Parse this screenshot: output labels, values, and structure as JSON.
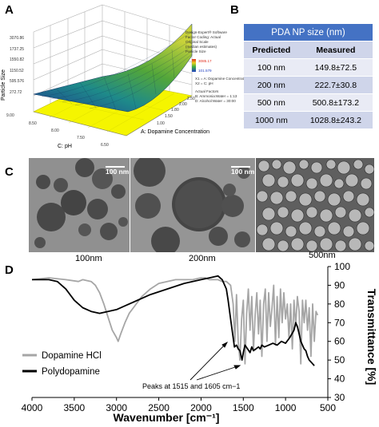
{
  "panels": {
    "a": "A",
    "b": "B",
    "c": "C",
    "d": "D"
  },
  "panel_a": {
    "z_axis_label": "Particle Size",
    "z_ticks": [
      "3070.86",
      "1737.25",
      "1550.82",
      "1150.52",
      "595.576",
      "272.72"
    ],
    "x_axis_label": "C: pH",
    "x_ticks": [
      "9.00",
      "8.50",
      "8.00",
      "7.50",
      "6.50"
    ],
    "y_axis_label": "A: Dopamine Concentration",
    "y_ticks": [
      "1.00",
      "1.50",
      "1.80",
      "2.00",
      "2.50"
    ],
    "legend_lines": [
      "Design-Expert® Software",
      "Factor Coding: Actual",
      "Original Scale",
      "(median estimates)",
      "Particle Size"
    ],
    "legend_high": "3085.17",
    "legend_low": "101.579",
    "factor_lines": [
      "X1 = A: Dopamine Concentration",
      "X2 = C: pH"
    ],
    "actual_factor_lines": [
      "Actual Factors",
      "B: Ammonia:Water = 1:13",
      "D: Alcohol:Water = 30:00"
    ]
  },
  "table": {
    "title": "PDA NP size (nm)",
    "headers": [
      "Predicted",
      "Measured"
    ],
    "rows": [
      {
        "predicted": "100 nm",
        "measured": "149.8±72.5"
      },
      {
        "predicted": "200 nm",
        "measured": "222.7±30.8"
      },
      {
        "predicted": "500 nm",
        "measured": "500.8±173.2"
      },
      {
        "predicted": "1000 nm",
        "measured": "1028.8±243.2"
      }
    ]
  },
  "panel_c": {
    "scale1": "100 nm",
    "scale2": "100 nm",
    "captions": [
      "100nm",
      "200nm",
      "500nm"
    ]
  },
  "chart_data": {
    "type": "line",
    "xlabel": "Wavenumber [cm⁻¹]",
    "ylabel": "Transmittance [%]",
    "xlim": [
      4000,
      500
    ],
    "ylim": [
      30,
      100
    ],
    "x_ticks": [
      4000,
      3500,
      3000,
      2500,
      2000,
      1500,
      1000,
      500
    ],
    "y_ticks": [
      30,
      40,
      50,
      60,
      70,
      80,
      90,
      100
    ],
    "annotation": "Peaks at 1515 and 1605 cm−1",
    "series": [
      {
        "name": "Dopamine HCl",
        "color": "#a6a6a6",
        "x": [
          4000,
          3800,
          3600,
          3450,
          3400,
          3300,
          3250,
          3200,
          3150,
          3100,
          3050,
          3000,
          2980,
          2950,
          2900,
          2850,
          2800,
          2700,
          2600,
          2500,
          2400,
          2300,
          2200,
          2100,
          2000,
          1950,
          1900,
          1850,
          1800,
          1750,
          1700,
          1650,
          1620,
          1600,
          1580,
          1560,
          1540,
          1520,
          1500,
          1480,
          1460,
          1440,
          1420,
          1400,
          1380,
          1360,
          1340,
          1320,
          1300,
          1280,
          1260,
          1240,
          1220,
          1200,
          1180,
          1160,
          1140,
          1120,
          1100,
          1080,
          1060,
          1040,
          1020,
          1000,
          980,
          960,
          940,
          920,
          900,
          880,
          860,
          840,
          820,
          800,
          780,
          760,
          740,
          720,
          700,
          680,
          660,
          640,
          620
        ],
        "y": [
          93,
          94,
          93,
          92,
          93,
          92,
          90,
          86,
          80,
          73,
          66,
          62,
          60,
          64,
          70,
          75,
          78,
          84,
          88,
          91,
          92,
          93,
          93,
          93,
          94,
          94,
          93,
          93,
          93,
          92,
          92,
          90,
          80,
          60,
          85,
          60,
          50,
          72,
          82,
          48,
          75,
          88,
          66,
          84,
          55,
          74,
          86,
          64,
          82,
          52,
          80,
          88,
          60,
          86,
          68,
          78,
          90,
          58,
          84,
          62,
          88,
          70,
          86,
          72,
          80,
          62,
          80,
          56,
          82,
          68,
          84,
          76,
          48,
          82,
          70,
          82,
          66,
          78,
          52,
          80,
          60,
          76,
          74
        ]
      },
      {
        "name": "Polydopamine",
        "color": "#000000",
        "x": [
          4000,
          3800,
          3700,
          3600,
          3500,
          3400,
          3300,
          3200,
          3100,
          3000,
          2900,
          2800,
          2600,
          2400,
          2200,
          2000,
          1900,
          1800,
          1750,
          1700,
          1680,
          1650,
          1620,
          1605,
          1580,
          1560,
          1540,
          1515,
          1500,
          1480,
          1450,
          1420,
          1400,
          1380,
          1350,
          1320,
          1300,
          1280,
          1250,
          1200,
          1150,
          1100,
          1050,
          1000,
          950,
          900,
          880,
          860,
          840,
          820,
          800,
          780,
          760,
          740,
          720,
          700,
          680,
          660
        ],
        "y": [
          93,
          93,
          92,
          88,
          82,
          78,
          76,
          75,
          76,
          77,
          79,
          81,
          85,
          88,
          91,
          93,
          94,
          95,
          93,
          88,
          82,
          72,
          62,
          57,
          58,
          56,
          55,
          50,
          54,
          58,
          56,
          54,
          57,
          55,
          56,
          57,
          56,
          58,
          57,
          58,
          59,
          58,
          60,
          59,
          62,
          66,
          70,
          68,
          64,
          60,
          58,
          56,
          55,
          52,
          50,
          49,
          48,
          47
        ]
      }
    ]
  }
}
